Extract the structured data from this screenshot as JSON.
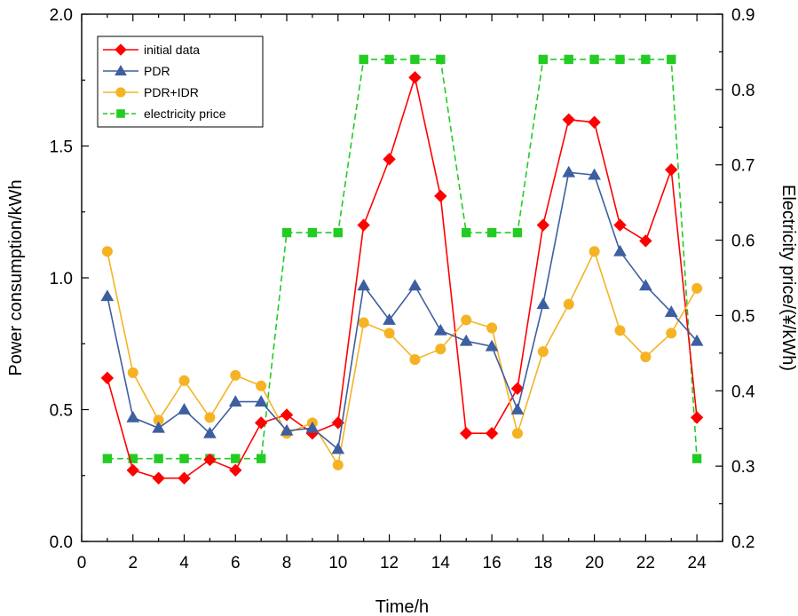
{
  "chart_data": {
    "type": "line",
    "title": "",
    "xlabel": "Time/h",
    "ylabel_left": "Power consumption/kWh",
    "ylabel_right": "Electricity price/(¥/kWh)",
    "xlim": [
      0,
      25
    ],
    "ylim_left": [
      0.0,
      2.0
    ],
    "ylim_right": [
      0.2,
      0.9
    ],
    "x_ticks": [
      "0",
      "2",
      "4",
      "6",
      "8",
      "10",
      "12",
      "14",
      "16",
      "18",
      "20",
      "22",
      "24"
    ],
    "y_left_ticks": [
      "0.0",
      "0.5",
      "1.0",
      "1.5",
      "2.0"
    ],
    "y_right_ticks": [
      "0.2",
      "0.3",
      "0.4",
      "0.5",
      "0.6",
      "0.7",
      "0.8",
      "0.9"
    ],
    "legend_position": "top-left",
    "x": [
      1,
      2,
      3,
      4,
      5,
      6,
      7,
      8,
      9,
      10,
      11,
      12,
      13,
      14,
      15,
      16,
      17,
      18,
      19,
      20,
      21,
      22,
      23,
      24
    ],
    "series": [
      {
        "name": "initial data",
        "axis": "left",
        "color": "#ff0000",
        "marker": "diamond",
        "dashed": false,
        "values": [
          0.62,
          0.27,
          0.24,
          0.24,
          0.31,
          0.27,
          0.45,
          0.48,
          0.41,
          0.45,
          1.2,
          1.45,
          1.76,
          1.31,
          0.41,
          0.41,
          0.58,
          1.2,
          1.6,
          1.59,
          1.2,
          1.14,
          1.41,
          0.47
        ]
      },
      {
        "name": "PDR",
        "axis": "left",
        "color": "#3d5fa0",
        "marker": "triangle",
        "dashed": false,
        "values": [
          0.93,
          0.47,
          0.43,
          0.5,
          0.41,
          0.53,
          0.53,
          0.42,
          0.43,
          0.35,
          0.97,
          0.84,
          0.97,
          0.8,
          0.76,
          0.74,
          0.5,
          0.9,
          1.4,
          1.39,
          1.1,
          0.97,
          0.87,
          0.76
        ]
      },
      {
        "name": "PDR+IDR",
        "axis": "left",
        "color": "#f5b324",
        "marker": "circle",
        "dashed": false,
        "values": [
          1.1,
          0.64,
          0.46,
          0.61,
          0.47,
          0.63,
          0.59,
          0.41,
          0.45,
          0.29,
          0.83,
          0.79,
          0.69,
          0.73,
          0.84,
          0.81,
          0.41,
          0.72,
          0.9,
          1.1,
          0.8,
          0.7,
          0.79,
          0.96
        ]
      },
      {
        "name": "electricity price",
        "axis": "right",
        "color": "#22cc22",
        "marker": "square",
        "dashed": true,
        "values": [
          0.31,
          0.31,
          0.31,
          0.31,
          0.31,
          0.31,
          0.31,
          0.61,
          0.61,
          0.61,
          0.84,
          0.84,
          0.84,
          0.84,
          0.61,
          0.61,
          0.61,
          0.84,
          0.84,
          0.84,
          0.84,
          0.84,
          0.84,
          0.31
        ]
      }
    ]
  }
}
